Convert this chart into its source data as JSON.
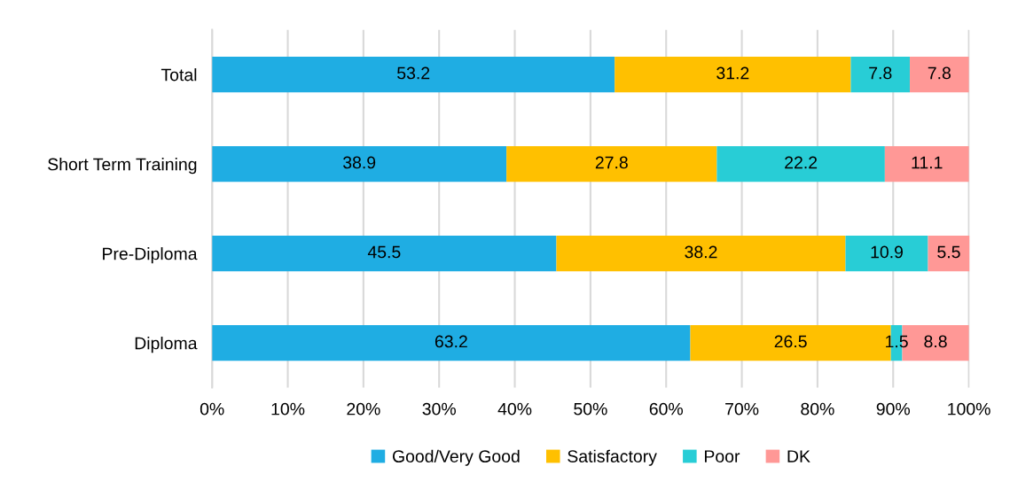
{
  "chart_data": {
    "type": "bar",
    "orientation": "horizontal",
    "stacked": true,
    "data_labels": true,
    "grid": "x",
    "legend": "bottom",
    "categories": [
      "Total",
      "Short Term Training",
      "Pre-Diploma",
      "Diploma"
    ],
    "series": [
      {
        "name": "Good/Very Good",
        "color": "#1fade3",
        "values": [
          53.2,
          38.9,
          45.5,
          63.2
        ]
      },
      {
        "name": "Satisfactory",
        "color": "#ffc000",
        "values": [
          31.2,
          27.8,
          38.2,
          26.5
        ]
      },
      {
        "name": "Poor",
        "color": "#28cdd6",
        "values": [
          7.8,
          22.2,
          10.9,
          1.5
        ]
      },
      {
        "name": "DK",
        "color": "#ff9896",
        "values": [
          7.8,
          11.1,
          5.5,
          8.8
        ]
      }
    ],
    "xlim": [
      0,
      100.1
    ],
    "xticks": [
      {
        "value": 0,
        "label": "0%"
      },
      {
        "value": 10,
        "label": "10%"
      },
      {
        "value": 20,
        "label": "20%"
      },
      {
        "value": 30,
        "label": "30%"
      },
      {
        "value": 40,
        "label": "40%"
      },
      {
        "value": 50,
        "label": "50%"
      },
      {
        "value": 60,
        "label": "60%"
      },
      {
        "value": 70,
        "label": "70%"
      },
      {
        "value": 80,
        "label": "80%"
      },
      {
        "value": 90,
        "label": "90%"
      },
      {
        "value": 100,
        "label": "100%"
      }
    ]
  }
}
